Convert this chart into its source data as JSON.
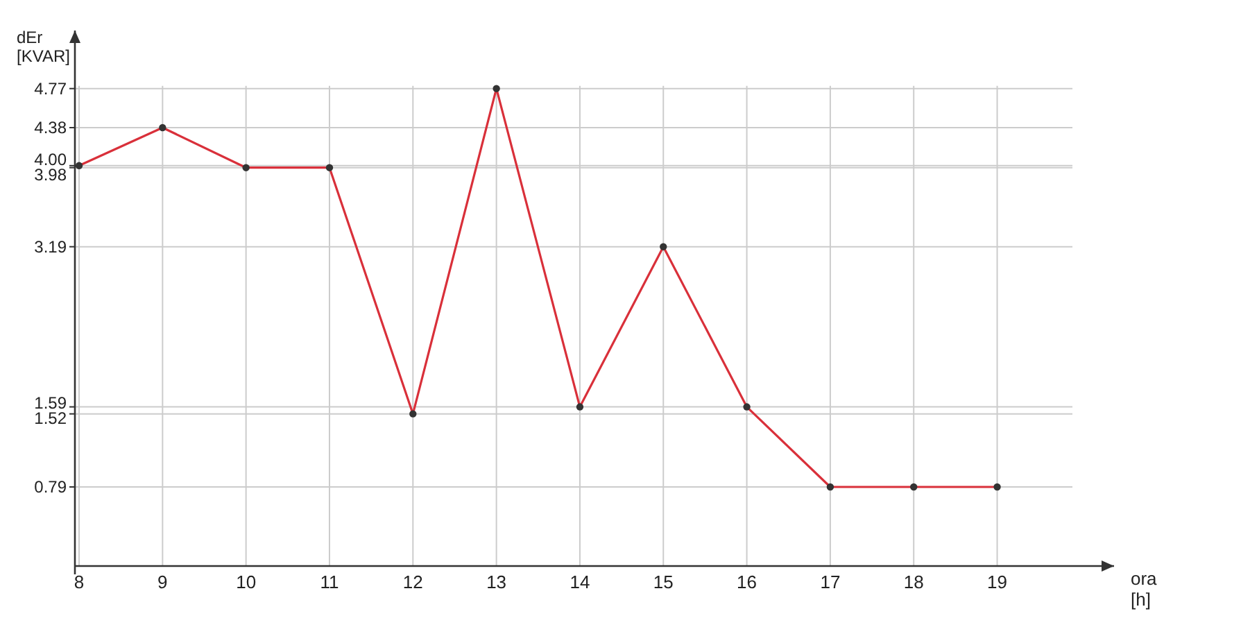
{
  "chart_data": {
    "type": "line",
    "xlabel": "ora [h]",
    "ylabel": "dEr [KVAR]",
    "x": [
      8,
      9,
      10,
      11,
      12,
      13,
      14,
      15,
      16,
      17,
      18,
      19
    ],
    "series": [
      {
        "color": "#d9303a",
        "values": [
          4.0,
          4.38,
          3.98,
          3.98,
          1.52,
          4.77,
          1.59,
          3.19,
          1.59,
          0.79,
          0.79,
          0.79
        ]
      }
    ],
    "xlim": [
      7.95,
      20.4
    ],
    "xticks": [
      8,
      9,
      10,
      11,
      12,
      13,
      14,
      15,
      16,
      17,
      18,
      19
    ],
    "ylim": [
      0,
      5.35
    ],
    "yticks": [
      0.79,
      1.52,
      1.59,
      3.19,
      3.98,
      {
        "value": 4,
        "label": "4.00"
      },
      4.38,
      4.77
    ],
    "grid": true,
    "marker": "circle",
    "line_style": "solid"
  }
}
